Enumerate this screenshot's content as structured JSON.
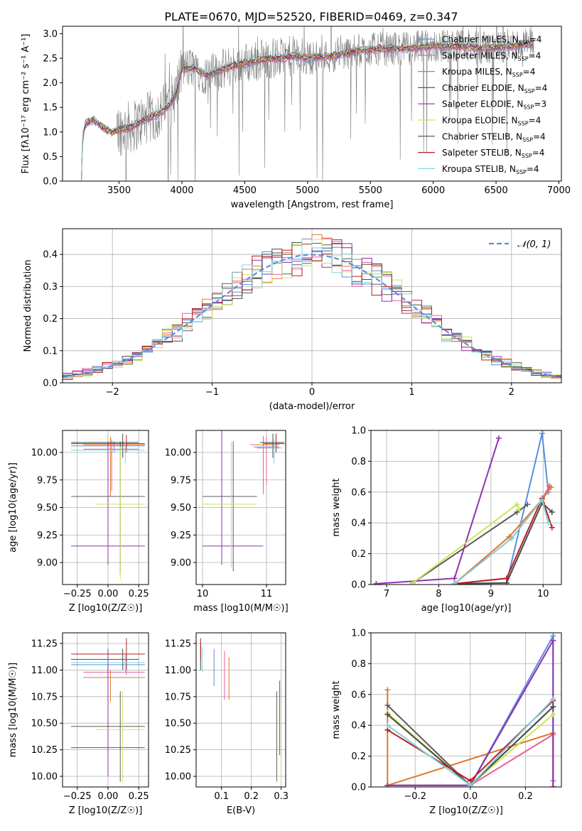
{
  "figure": {
    "title": "PLATE=0670, MJD=52520, FIBERID=0469, z=0.347"
  },
  "colors": {
    "ch_miles": "#5a8ee0",
    "sa_miles": "#e85c9a",
    "kr_miles": "#e0782a",
    "ch_elodie": "#5d5d5d",
    "sa_elodie": "#8e32b0",
    "kr_elodie": "#c8e65a",
    "ch_stelib": "#4a4a4a",
    "sa_stelib": "#b81e1e",
    "kr_stelib": "#80d2dc",
    "data_grey": "#7f7f7f",
    "dark_green": "#5b7a64"
  },
  "chart_data": [
    {
      "id": "spectrum",
      "type": "line",
      "xlabel": "wavelength [Angstrom, rest frame]",
      "ylabel": "Flux [fλ10⁻¹⁷ erg cm⁻² s⁻¹ A⁻¹]",
      "xlim": [
        3050,
        7020
      ],
      "ylim": [
        0,
        3.15
      ],
      "xticks": [
        3500,
        4000,
        4500,
        5000,
        5500,
        6000,
        6500,
        7000
      ],
      "yticks": [
        0.0,
        0.5,
        1.0,
        1.5,
        2.0,
        2.5,
        3.0
      ],
      "grid": false,
      "legend_position": "top-right",
      "legend": [
        {
          "label": "Chabrier MILES, NSSP=4",
          "color": "#5a8ee0"
        },
        {
          "label": "Salpeter MILES, NSSP=4",
          "color": "#e85c9a"
        },
        {
          "label": "Kroupa MILES, NSSP=4",
          "color": "#e0782a"
        },
        {
          "label": "Chabrier ELODIE, NSSP=4",
          "color": "#5d5d5d"
        },
        {
          "label": "Salpeter ELODIE, NSSP=3",
          "color": "#8e32b0"
        },
        {
          "label": "Kroupa ELODIE, NSSP=4",
          "color": "#c8e65a"
        },
        {
          "label": "Chabrier STELIB, NSSP=4",
          "color": "#4a4a4a"
        },
        {
          "label": "Salpeter STELIB, NSSP=4",
          "color": "#b81e1e"
        },
        {
          "label": "Kroupa STELIB, NSSP=4",
          "color": "#80d2dc"
        }
      ],
      "model_continuum": {
        "x": [
          3200,
          3210,
          3230,
          3250,
          3300,
          3350,
          3400,
          3450,
          3500,
          3600,
          3700,
          3800,
          3900,
          3950,
          4000,
          4100,
          4200,
          4300,
          4400,
          4500,
          4600,
          4700,
          4800,
          4900,
          5000,
          5200,
          5400,
          5600,
          5800,
          6000,
          6200,
          6400,
          6600,
          6800
        ],
        "y": [
          0.0,
          0.9,
          1.15,
          1.2,
          1.25,
          1.12,
          1.05,
          1.0,
          1.05,
          1.1,
          1.25,
          1.35,
          1.55,
          1.75,
          2.3,
          2.3,
          2.15,
          2.25,
          2.35,
          2.4,
          2.45,
          2.5,
          2.5,
          2.55,
          2.5,
          2.55,
          2.65,
          2.7,
          2.7,
          2.75,
          2.75,
          2.7,
          2.75,
          2.8
        ]
      }
    },
    {
      "id": "residuals",
      "type": "line",
      "xlabel": "(data-model)/error",
      "ylabel": "Normed distribution",
      "xlim": [
        -2.5,
        2.5
      ],
      "ylim": [
        0,
        0.48
      ],
      "xticks": [
        -2,
        -1,
        0,
        1,
        2
      ],
      "xticklabels": [
        "−2",
        "−1",
        "0",
        "1",
        "2"
      ],
      "yticks": [
        0.0,
        0.1,
        0.2,
        0.3,
        0.4
      ],
      "grid": true,
      "legend_position": "top-right",
      "legend": [
        {
          "label": "𝒩(0, 1)",
          "color": "#5a8ee0",
          "style": "dashed"
        }
      ],
      "bins": {
        "start": -2.5,
        "width": 0.1,
        "count": 50
      }
    },
    {
      "id": "age-vs-Z",
      "type": "scatter",
      "xlabel": "Z [log10(Z/Z☉)]",
      "ylabel": "age  [log10(age/yr)]",
      "xlim": [
        -0.37,
        0.33
      ],
      "ylim": [
        8.8,
        10.2
      ],
      "xticks": [
        -0.25,
        0.0,
        0.25
      ],
      "xticklabels": [
        "−0.25",
        "0.00",
        "0.25"
      ],
      "yticks": [
        9.0,
        9.25,
        9.5,
        9.75,
        10.0
      ],
      "yticklabels": [
        "9.00",
        "9.25",
        "9.50",
        "9.75",
        "10.00"
      ],
      "grid": true,
      "points": [
        {
          "series": "Chabrier MILES",
          "x": 0.05,
          "y": 10.06,
          "x_lo": -0.3,
          "x_hi": 0.3,
          "y_lo": 10.0,
          "y_hi": 10.1
        },
        {
          "series": "Salpeter MILES",
          "x": 0.03,
          "y": 10.03,
          "x_lo": -0.2,
          "x_hi": 0.25,
          "y_lo": 9.65,
          "y_hi": 10.12
        },
        {
          "series": "Kroupa MILES",
          "x": 0.02,
          "y": 10.07,
          "x_lo": -0.2,
          "x_hi": 0.3,
          "y_lo": 9.6,
          "y_hi": 10.15
        },
        {
          "series": "Chabrier ELODIE",
          "x": 0.1,
          "y": 9.6,
          "x_lo": -0.3,
          "x_hi": 0.3,
          "y_lo": 8.9,
          "y_hi": 10.1
        },
        {
          "series": "Salpeter ELODIE",
          "x": 0.0,
          "y": 9.15,
          "x_lo": -0.3,
          "x_hi": 0.3,
          "y_lo": 8.98,
          "y_hi": 10.1
        },
        {
          "series": "Kroupa ELODIE",
          "x": 0.1,
          "y": 9.53,
          "x_lo": -0.1,
          "x_hi": 0.3,
          "y_lo": 8.85,
          "y_hi": 10.05
        },
        {
          "series": "Chabrier STELIB",
          "x": 0.12,
          "y": 10.09,
          "x_lo": -0.3,
          "x_hi": 0.25,
          "y_lo": 9.95,
          "y_hi": 10.17
        },
        {
          "series": "Salpeter STELIB",
          "x": 0.15,
          "y": 10.08,
          "x_lo": -0.3,
          "x_hi": 0.3,
          "y_lo": 10.0,
          "y_hi": 10.16
        },
        {
          "series": "Kroupa STELIB",
          "x": 0.14,
          "y": 10.02,
          "x_lo": -0.3,
          "x_hi": 0.3,
          "y_lo": 9.9,
          "y_hi": 10.1
        }
      ]
    },
    {
      "id": "age-vs-mass",
      "type": "scatter",
      "xlabel": "mass [log10(M/M☉)]",
      "ylabel": "",
      "xlim": [
        9.9,
        11.3
      ],
      "ylim": [
        8.8,
        10.2
      ],
      "xticks": [
        10,
        11
      ],
      "yticks": [
        9.0,
        9.25,
        9.5,
        9.75,
        10.0
      ],
      "yticklabels": [
        "9.00",
        "9.25",
        "9.50",
        "9.75",
        "10.00"
      ],
      "grid": true,
      "points": [
        {
          "series": "Chabrier MILES",
          "x": 11.0,
          "y": 10.05,
          "x_lo": 10.8,
          "x_hi": 11.2,
          "y_lo": 9.9,
          "y_hi": 10.15
        },
        {
          "series": "Salpeter MILES",
          "x": 11.0,
          "y": 10.04,
          "x_lo": 10.85,
          "x_hi": 11.2,
          "y_lo": 9.7,
          "y_hi": 10.15
        },
        {
          "series": "Kroupa MILES",
          "x": 10.95,
          "y": 10.07,
          "x_lo": 10.75,
          "x_hi": 11.2,
          "y_lo": 9.62,
          "y_hi": 10.15
        },
        {
          "series": "Chabrier ELODIE",
          "x": 10.48,
          "y": 9.6,
          "x_lo": 10.0,
          "x_hi": 10.85,
          "y_lo": 8.92,
          "y_hi": 10.1
        },
        {
          "series": "Salpeter ELODIE",
          "x": 10.3,
          "y": 9.15,
          "x_lo": 10.0,
          "x_hi": 10.95,
          "y_lo": 8.98,
          "y_hi": 10.2
        },
        {
          "series": "Kroupa ELODIE",
          "x": 10.45,
          "y": 9.53,
          "x_lo": 10.0,
          "x_hi": 10.85,
          "y_lo": 8.95,
          "y_hi": 10.1
        },
        {
          "series": "Chabrier STELIB",
          "x": 11.1,
          "y": 10.09,
          "x_lo": 10.9,
          "x_hi": 11.28,
          "y_lo": 9.95,
          "y_hi": 10.17
        },
        {
          "series": "Salpeter STELIB",
          "x": 11.15,
          "y": 10.08,
          "x_lo": 10.95,
          "x_hi": 11.28,
          "y_lo": 10.0,
          "y_hi": 10.17
        },
        {
          "series": "Kroupa STELIB",
          "x": 11.12,
          "y": 10.04,
          "x_lo": 10.95,
          "x_hi": 11.25,
          "y_lo": 9.9,
          "y_hi": 10.12
        }
      ]
    },
    {
      "id": "weight-vs-age",
      "type": "line",
      "xlabel": "age  [log10(age/yr)]",
      "ylabel": "mass weight",
      "xlim": [
        6.7,
        10.35
      ],
      "ylim": [
        0,
        1.0
      ],
      "xticks": [
        7,
        8,
        9,
        10
      ],
      "yticks": [
        0.0,
        0.2,
        0.4,
        0.6,
        0.8,
        1.0
      ],
      "grid": true,
      "series": [
        {
          "name": "Chabrier MILES",
          "x": [
            8.3,
            9.3,
            9.98,
            10.1
          ],
          "y": [
            0.005,
            0.01,
            0.98,
            0.6
          ]
        },
        {
          "name": "Salpeter MILES",
          "x": [
            8.3,
            9.4,
            9.98,
            10.12
          ],
          "y": [
            0.005,
            0.3,
            0.55,
            0.64
          ]
        },
        {
          "name": "Kroupa MILES",
          "x": [
            8.3,
            9.35,
            9.98,
            10.15
          ],
          "y": [
            0.005,
            0.31,
            0.55,
            0.63
          ]
        },
        {
          "name": "Chabrier ELODIE",
          "x": [
            7.5,
            9.5,
            9.7
          ],
          "y": [
            0.01,
            0.47,
            0.52
          ]
        },
        {
          "name": "Salpeter ELODIE",
          "x": [
            6.8,
            8.3,
            9.15
          ],
          "y": [
            0.005,
            0.04,
            0.95
          ]
        },
        {
          "name": "Kroupa ELODIE",
          "x": [
            7.5,
            9.5,
            9.55
          ],
          "y": [
            0.01,
            0.52,
            0.48
          ]
        },
        {
          "name": "Chabrier STELIB",
          "x": [
            8.3,
            9.3,
            9.98,
            10.17
          ],
          "y": [
            0.005,
            0.01,
            0.53,
            0.47
          ]
        },
        {
          "name": "Salpeter STELIB",
          "x": [
            8.3,
            9.3,
            9.98,
            10.17
          ],
          "y": [
            0.005,
            0.04,
            0.56,
            0.37
          ]
        },
        {
          "name": "Kroupa STELIB",
          "x": [
            8.3,
            9.4,
            9.98,
            10.1
          ],
          "y": [
            0.005,
            0.3,
            0.55,
            0.4
          ]
        }
      ]
    },
    {
      "id": "mass-vs-Z",
      "type": "scatter",
      "xlabel": "Z [log10(Z/Z☉)]",
      "ylabel": "mass [log10(M/M☉)]",
      "xlim": [
        -0.37,
        0.33
      ],
      "ylim": [
        9.9,
        11.35
      ],
      "xticks": [
        -0.25,
        0.0,
        0.25
      ],
      "xticklabels": [
        "−0.25",
        "0.00",
        "0.25"
      ],
      "yticks": [
        10.0,
        10.25,
        10.5,
        10.75,
        11.0,
        11.25
      ],
      "yticklabels": [
        "10.00",
        "10.25",
        "10.50",
        "10.75",
        "11.00",
        "11.25"
      ],
      "grid": true,
      "points": [
        {
          "series": "Chabrier MILES",
          "x": 0.15,
          "y": 11.05,
          "x_lo": -0.3,
          "x_hi": 0.3,
          "y_lo": 10.95,
          "y_hi": 11.15
        },
        {
          "series": "Salpeter MILES",
          "x": 0.0,
          "y": 10.98,
          "x_lo": -0.2,
          "x_hi": 0.3,
          "y_lo": 10.72,
          "y_hi": 11.05
        },
        {
          "series": "Kroupa MILES",
          "x": 0.02,
          "y": 10.93,
          "x_lo": -0.2,
          "x_hi": 0.3,
          "y_lo": 10.7,
          "y_hi": 11.0
        },
        {
          "series": "Chabrier ELODIE",
          "x": 0.1,
          "y": 10.47,
          "x_lo": -0.3,
          "x_hi": 0.3,
          "y_lo": 9.95,
          "y_hi": 10.8
        },
        {
          "series": "Salpeter ELODIE",
          "x": 0.0,
          "y": 10.27,
          "x_lo": -0.3,
          "x_hi": 0.3,
          "y_lo": 10.0,
          "y_hi": 11.2
        },
        {
          "series": "Kroupa ELODIE",
          "x": 0.12,
          "y": 10.44,
          "x_lo": -0.1,
          "x_hi": 0.3,
          "y_lo": 9.95,
          "y_hi": 10.8
        },
        {
          "series": "Chabrier STELIB",
          "x": 0.12,
          "y": 11.1,
          "x_lo": -0.3,
          "x_hi": 0.25,
          "y_lo": 11.0,
          "y_hi": 11.2
        },
        {
          "series": "Salpeter STELIB",
          "x": 0.15,
          "y": 11.15,
          "x_lo": -0.3,
          "x_hi": 0.3,
          "y_lo": 11.0,
          "y_hi": 11.3
        },
        {
          "series": "Kroupa STELIB",
          "x": 0.14,
          "y": 11.07,
          "x_lo": -0.3,
          "x_hi": 0.3,
          "y_lo": 10.98,
          "y_hi": 11.15
        }
      ]
    },
    {
      "id": "mass-vs-EBV",
      "type": "scatter",
      "xlabel": "E(B-V)",
      "ylabel": "",
      "xlim": [
        0.015,
        0.315
      ],
      "ylim": [
        9.9,
        11.35
      ],
      "xticks": [
        0.1,
        0.2,
        0.3
      ],
      "yticks": [
        10.0,
        10.25,
        10.5,
        10.75,
        11.0,
        11.25
      ],
      "yticklabels": [
        "10.00",
        "10.25",
        "10.50",
        "10.75",
        "11.00",
        "11.25"
      ],
      "grid": true,
      "points": [
        {
          "series": "Chabrier MILES",
          "x": 0.075,
          "y": 11.05,
          "y_lo": 10.85,
          "y_hi": 11.2
        },
        {
          "series": "Salpeter MILES",
          "x": 0.11,
          "y": 10.95,
          "y_lo": 10.72,
          "y_hi": 11.18
        },
        {
          "series": "Kroupa MILES",
          "x": 0.125,
          "y": 10.95,
          "y_lo": 10.72,
          "y_hi": 11.12
        },
        {
          "series": "Chabrier ELODIE",
          "x": 0.285,
          "y": 10.4,
          "y_lo": 9.95,
          "y_hi": 10.8
        },
        {
          "series": "Salpeter ELODIE",
          "x": 0.295,
          "y": 10.4,
          "y_lo": 10.2,
          "y_hi": 10.9
        },
        {
          "series": "Kroupa ELODIE",
          "x": 0.3,
          "y": 10.35,
          "y_lo": 9.95,
          "y_hi": 10.75
        },
        {
          "series": "Chabrier STELIB",
          "x": 0.03,
          "y": 11.15,
          "y_lo": 11.0,
          "y_hi": 11.25
        },
        {
          "series": "Salpeter STELIB",
          "x": 0.03,
          "y": 11.2,
          "y_lo": 11.1,
          "y_hi": 11.3
        },
        {
          "series": "Kroupa STELIB",
          "x": 0.035,
          "y": 11.1,
          "y_lo": 10.98,
          "y_hi": 11.22
        }
      ]
    },
    {
      "id": "weight-vs-Z",
      "type": "line",
      "xlabel": "Z [log10(Z/Z☉)]",
      "ylabel": "mass weight",
      "xlim": [
        -0.36,
        0.33
      ],
      "ylim": [
        0,
        1.0
      ],
      "xticks": [
        -0.2,
        0.0,
        0.2
      ],
      "xticklabels": [
        "−0.2",
        "0.0",
        "0.2"
      ],
      "yticks": [
        0.0,
        0.2,
        0.4,
        0.6,
        0.8,
        1.0
      ],
      "grid": true,
      "series": [
        {
          "name": "Chabrier MILES",
          "x": [
            -0.3,
            0.0,
            0.3,
            0.3
          ],
          "y": [
            0.01,
            0.01,
            0.98,
            0.04
          ]
        },
        {
          "name": "Salpeter MILES",
          "x": [
            -0.3,
            0.0,
            0.3,
            0.3
          ],
          "y": [
            0.01,
            0.01,
            0.34,
            0.0
          ]
        },
        {
          "name": "Kroupa MILES",
          "x": [
            -0.3,
            -0.3,
            0.3,
            0.3
          ],
          "y": [
            0.63,
            0.01,
            0.35,
            0.0
          ]
        },
        {
          "name": "Chabrier ELODIE",
          "x": [
            -0.3,
            0.0,
            0.3
          ],
          "y": [
            0.53,
            0.01,
            0.52
          ]
        },
        {
          "name": "Salpeter ELODIE",
          "x": [
            -0.3,
            0.0,
            0.3,
            0.3
          ],
          "y": [
            0.01,
            0.01,
            0.95,
            0.0
          ]
        },
        {
          "name": "Kroupa ELODIE",
          "x": [
            -0.3,
            0.0,
            0.3
          ],
          "y": [
            0.48,
            0.01,
            0.47
          ]
        },
        {
          "name": "Chabrier STELIB",
          "x": [
            -0.3,
            0.0,
            0.3
          ],
          "y": [
            0.47,
            0.01,
            0.52
          ]
        },
        {
          "name": "Salpeter STELIB",
          "x": [
            -0.3,
            0.0,
            0.3
          ],
          "y": [
            0.37,
            0.04,
            0.56
          ]
        },
        {
          "name": "Kroupa STELIB",
          "x": [
            -0.3,
            0.0,
            0.3
          ],
          "y": [
            0.4,
            0.01,
            0.57
          ]
        }
      ]
    }
  ]
}
